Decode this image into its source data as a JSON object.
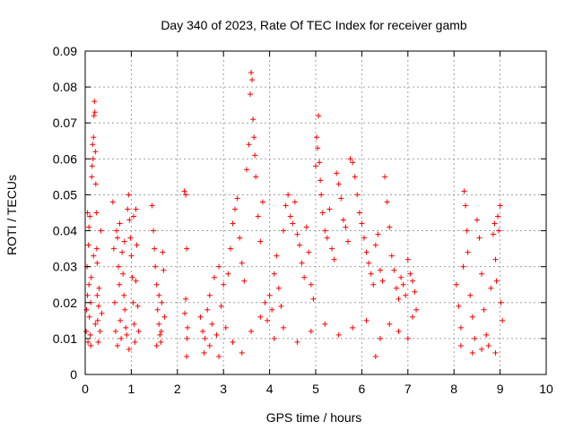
{
  "chart_data": {
    "type": "scatter",
    "title": "Day 340 of 2023, Rate Of TEC Index for receiver gamb",
    "xlabel": "GPS time / hours",
    "ylabel": "ROTI / TECUs",
    "xlim": [
      0,
      10
    ],
    "ylim": [
      0,
      0.09
    ],
    "xticks": [
      "0",
      "1",
      "2",
      "3",
      "4",
      "5",
      "6",
      "7",
      "8",
      "9",
      "10"
    ],
    "yticks": [
      "0",
      "0.01",
      "0.02",
      "0.03",
      "0.04",
      "0.05",
      "0.06",
      "0.07",
      "0.08",
      "0.09"
    ],
    "grid": true,
    "marker": "+",
    "series_color": "#ff0000",
    "series": [
      {
        "name": "ROTI",
        "points": [
          [
            0.02,
            0.012
          ],
          [
            0.03,
            0.018
          ],
          [
            0.04,
            0.03
          ],
          [
            0.05,
            0.022
          ],
          [
            0.06,
            0.009
          ],
          [
            0.07,
            0.036
          ],
          [
            0.08,
            0.025
          ],
          [
            0.09,
            0.016
          ],
          [
            0.1,
            0.044
          ],
          [
            0.11,
            0.011
          ],
          [
            0.12,
            0.02
          ],
          [
            0.13,
            0.027
          ],
          [
            0.14,
            0.055
          ],
          [
            0.15,
            0.058
          ],
          [
            0.16,
            0.064
          ],
          [
            0.17,
            0.06
          ],
          [
            0.18,
            0.066
          ],
          [
            0.19,
            0.072
          ],
          [
            0.2,
            0.076
          ],
          [
            0.21,
            0.073
          ],
          [
            0.22,
            0.062
          ],
          [
            0.23,
            0.053
          ],
          [
            0.24,
            0.045
          ],
          [
            0.25,
            0.035
          ],
          [
            0.26,
            0.022
          ],
          [
            0.27,
            0.015
          ],
          [
            0.28,
            0.009
          ],
          [
            0.29,
            0.019
          ],
          [
            0.3,
            0.024
          ],
          [
            0.32,
            0.012
          ],
          [
            0.34,
            0.04
          ],
          [
            0.36,
            0.017
          ],
          [
            0.05,
            0.045
          ],
          [
            0.08,
            0.041
          ],
          [
            0.12,
            0.008
          ],
          [
            0.18,
            0.033
          ],
          [
            0.22,
            0.014
          ],
          [
            0.26,
            0.031
          ],
          [
            0.6,
            0.048
          ],
          [
            0.62,
            0.035
          ],
          [
            0.64,
            0.02
          ],
          [
            0.66,
            0.012
          ],
          [
            0.68,
            0.04
          ],
          [
            0.7,
            0.038
          ],
          [
            0.72,
            0.03
          ],
          [
            0.74,
            0.025
          ],
          [
            0.76,
            0.015
          ],
          [
            0.78,
            0.01
          ],
          [
            0.8,
            0.034
          ],
          [
            0.82,
            0.028
          ],
          [
            0.84,
            0.022
          ],
          [
            0.86,
            0.018
          ],
          [
            0.88,
            0.013
          ],
          [
            0.9,
            0.011
          ],
          [
            0.92,
            0.046
          ],
          [
            0.94,
            0.05
          ],
          [
            0.96,
            0.043
          ],
          [
            0.98,
            0.038
          ],
          [
            1.0,
            0.033
          ],
          [
            1.02,
            0.027
          ],
          [
            1.04,
            0.02
          ],
          [
            1.06,
            0.014
          ],
          [
            1.08,
            0.009
          ],
          [
            1.1,
            0.046
          ],
          [
            1.12,
            0.036
          ],
          [
            1.14,
            0.019
          ],
          [
            1.16,
            0.012
          ],
          [
            0.7,
            0.008
          ],
          [
            0.75,
            0.042
          ],
          [
            0.85,
            0.037
          ],
          [
            0.95,
            0.007
          ],
          [
            1.05,
            0.044
          ],
          [
            1.1,
            0.026
          ],
          [
            1.45,
            0.047
          ],
          [
            1.48,
            0.04
          ],
          [
            1.5,
            0.035
          ],
          [
            1.52,
            0.03
          ],
          [
            1.55,
            0.025
          ],
          [
            1.57,
            0.018
          ],
          [
            1.6,
            0.014
          ],
          [
            1.62,
            0.011
          ],
          [
            1.64,
            0.009
          ],
          [
            1.66,
            0.02
          ],
          [
            1.68,
            0.034
          ],
          [
            1.7,
            0.029
          ],
          [
            1.72,
            0.016
          ],
          [
            1.55,
            0.008
          ],
          [
            1.6,
            0.022
          ],
          [
            1.65,
            0.012
          ],
          [
            2.15,
            0.051
          ],
          [
            2.18,
            0.05
          ],
          [
            2.2,
            0.035
          ],
          [
            2.22,
            0.013
          ],
          [
            2.2,
            0.005
          ],
          [
            2.18,
            0.021
          ],
          [
            2.21,
            0.01
          ],
          [
            2.16,
            0.017
          ],
          [
            2.5,
            0.016
          ],
          [
            2.55,
            0.012
          ],
          [
            2.6,
            0.01
          ],
          [
            2.65,
            0.018
          ],
          [
            2.7,
            0.022
          ],
          [
            2.75,
            0.014
          ],
          [
            2.8,
            0.027
          ],
          [
            2.85,
            0.011
          ],
          [
            2.9,
            0.03
          ],
          [
            2.95,
            0.019
          ],
          [
            3.0,
            0.025
          ],
          [
            3.05,
            0.013
          ],
          [
            3.1,
            0.028
          ],
          [
            3.15,
            0.035
          ],
          [
            3.2,
            0.042
          ],
          [
            3.25,
            0.046
          ],
          [
            3.3,
            0.049
          ],
          [
            3.35,
            0.038
          ],
          [
            3.4,
            0.031
          ],
          [
            3.45,
            0.026
          ],
          [
            3.5,
            0.057
          ],
          [
            3.55,
            0.064
          ],
          [
            3.58,
            0.078
          ],
          [
            3.6,
            0.084
          ],
          [
            3.62,
            0.082
          ],
          [
            3.64,
            0.071
          ],
          [
            3.66,
            0.066
          ],
          [
            3.68,
            0.061
          ],
          [
            3.7,
            0.055
          ],
          [
            3.75,
            0.044
          ],
          [
            3.8,
            0.037
          ],
          [
            3.85,
            0.048
          ],
          [
            3.9,
            0.02
          ],
          [
            3.95,
            0.015
          ],
          [
            2.58,
            0.006
          ],
          [
            2.7,
            0.008
          ],
          [
            2.9,
            0.005
          ],
          [
            3.2,
            0.009
          ],
          [
            3.4,
            0.006
          ],
          [
            3.6,
            0.012
          ],
          [
            3.8,
            0.016
          ],
          [
            4.0,
            0.022
          ],
          [
            4.05,
            0.018
          ],
          [
            4.1,
            0.028
          ],
          [
            4.15,
            0.033
          ],
          [
            4.2,
            0.024
          ],
          [
            4.25,
            0.019
          ],
          [
            4.3,
            0.04
          ],
          [
            4.35,
            0.047
          ],
          [
            4.4,
            0.05
          ],
          [
            4.45,
            0.044
          ],
          [
            4.5,
            0.042
          ],
          [
            4.55,
            0.048
          ],
          [
            4.6,
            0.039
          ],
          [
            4.65,
            0.036
          ],
          [
            4.7,
            0.031
          ],
          [
            4.75,
            0.027
          ],
          [
            4.8,
            0.041
          ],
          [
            4.85,
            0.034
          ],
          [
            4.9,
            0.025
          ],
          [
            4.95,
            0.021
          ],
          [
            5.0,
            0.058
          ],
          [
            5.02,
            0.066
          ],
          [
            5.04,
            0.063
          ],
          [
            5.06,
            0.072
          ],
          [
            5.08,
            0.059
          ],
          [
            5.1,
            0.054
          ],
          [
            5.12,
            0.05
          ],
          [
            5.15,
            0.045
          ],
          [
            5.2,
            0.04
          ],
          [
            5.25,
            0.038
          ],
          [
            5.3,
            0.046
          ],
          [
            5.35,
            0.035
          ],
          [
            5.4,
            0.032
          ],
          [
            5.45,
            0.056
          ],
          [
            5.5,
            0.053
          ],
          [
            5.55,
            0.049
          ],
          [
            5.6,
            0.043
          ],
          [
            5.65,
            0.041
          ],
          [
            5.7,
            0.037
          ],
          [
            5.75,
            0.06
          ],
          [
            5.8,
            0.059
          ],
          [
            5.85,
            0.055
          ],
          [
            5.9,
            0.05
          ],
          [
            5.95,
            0.045
          ],
          [
            6.0,
            0.042
          ],
          [
            6.05,
            0.038
          ],
          [
            6.1,
            0.034
          ],
          [
            6.15,
            0.031
          ],
          [
            6.2,
            0.028
          ],
          [
            6.25,
            0.025
          ],
          [
            6.3,
            0.036
          ],
          [
            6.35,
            0.039
          ],
          [
            6.4,
            0.029
          ],
          [
            6.45,
            0.026
          ],
          [
            6.5,
            0.055
          ],
          [
            6.55,
            0.048
          ],
          [
            6.6,
            0.041
          ],
          [
            6.65,
            0.033
          ],
          [
            6.7,
            0.029
          ],
          [
            6.75,
            0.024
          ],
          [
            6.8,
            0.021
          ],
          [
            6.85,
            0.027
          ],
          [
            6.9,
            0.025
          ],
          [
            6.95,
            0.022
          ],
          [
            7.0,
            0.032
          ],
          [
            7.05,
            0.028
          ],
          [
            7.1,
            0.026
          ],
          [
            7.15,
            0.023
          ],
          [
            7.18,
            0.018
          ],
          [
            4.1,
            0.01
          ],
          [
            4.3,
            0.013
          ],
          [
            4.6,
            0.009
          ],
          [
            4.9,
            0.012
          ],
          [
            5.2,
            0.014
          ],
          [
            5.5,
            0.011
          ],
          [
            5.8,
            0.013
          ],
          [
            6.1,
            0.015
          ],
          [
            6.3,
            0.005
          ],
          [
            6.4,
            0.01
          ],
          [
            6.6,
            0.014
          ],
          [
            6.8,
            0.012
          ],
          [
            7.0,
            0.01
          ],
          [
            7.1,
            0.016
          ],
          [
            8.05,
            0.025
          ],
          [
            8.1,
            0.019
          ],
          [
            8.15,
            0.013
          ],
          [
            8.2,
            0.03
          ],
          [
            8.22,
            0.051
          ],
          [
            8.25,
            0.047
          ],
          [
            8.28,
            0.04
          ],
          [
            8.3,
            0.034
          ],
          [
            8.35,
            0.022
          ],
          [
            8.4,
            0.016
          ],
          [
            8.45,
            0.01
          ],
          [
            8.5,
            0.043
          ],
          [
            8.55,
            0.038
          ],
          [
            8.6,
            0.028
          ],
          [
            8.65,
            0.018
          ],
          [
            8.7,
            0.011
          ],
          [
            8.75,
            0.008
          ],
          [
            8.8,
            0.024
          ],
          [
            8.85,
            0.039
          ],
          [
            8.88,
            0.042
          ],
          [
            8.9,
            0.032
          ],
          [
            8.92,
            0.026
          ],
          [
            8.95,
            0.044
          ],
          [
            8.97,
            0.04
          ],
          [
            9.0,
            0.047
          ],
          [
            9.02,
            0.02
          ],
          [
            9.05,
            0.015
          ],
          [
            8.15,
            0.008
          ],
          [
            8.4,
            0.006
          ],
          [
            8.6,
            0.007
          ],
          [
            8.9,
            0.006
          ]
        ]
      }
    ]
  }
}
